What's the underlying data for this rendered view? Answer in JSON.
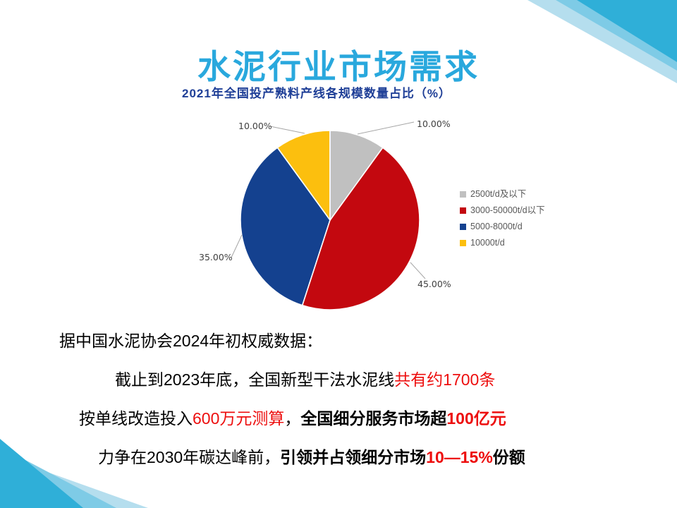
{
  "title": "水泥行业市场需求",
  "chart_data": {
    "type": "pie",
    "title": "2021年全国投产熟料产线各规模数量占比（%）",
    "categories": [
      "2500t/d及以下",
      "3000-50000t/d以下",
      "5000-8000t/d",
      "10000t/d"
    ],
    "values": [
      10,
      45,
      35,
      10
    ],
    "slice_labels": [
      "10.00%",
      "45.00%",
      "35.00%",
      "10.00%"
    ],
    "colors": [
      "#c0c0c0",
      "#c3080f",
      "#14418f",
      "#fcbf0e"
    ],
    "legend_position": "right",
    "start_angle_deg": 0,
    "direction": "clockwise"
  },
  "body": {
    "line1": "据中国水泥协会2024年初权威数据：",
    "line2_black": "截止到2023年底，全国新型干法水泥线",
    "line2_red": "共有约1700条",
    "line3_black1": "按单线改造投入",
    "line3_red1": "600万元测算",
    "line3_black2": "，",
    "line3_bold": "全国细分服务市场超",
    "line3_red_bold": "100亿元",
    "line4_black": "力争在2030年碳达峰前，",
    "line4_bold1": "引领并占领细分市场",
    "line4_red_bold": "10—15%",
    "line4_bold2": "份额"
  },
  "deco_colors": {
    "dark": "#2fafd8",
    "mid": "#7ecbe6",
    "light": "#b5deee"
  }
}
